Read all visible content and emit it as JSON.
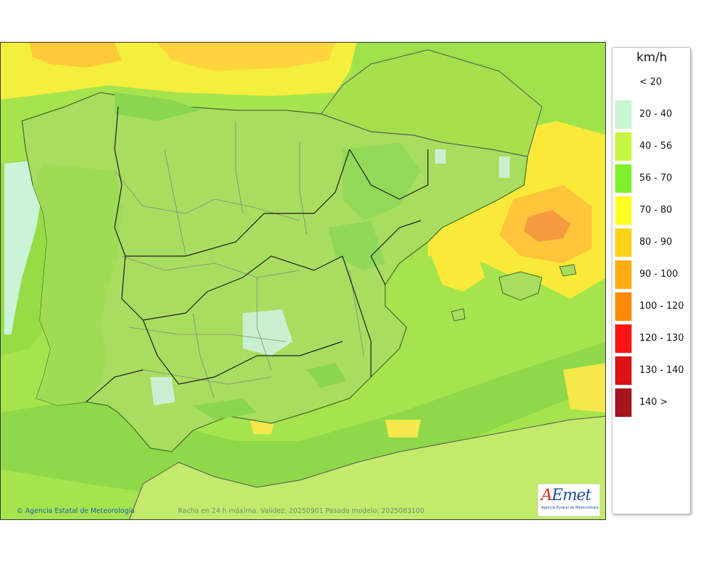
{
  "legend": {
    "title": "km/h",
    "items": [
      {
        "label": "< 20",
        "color": "#ffffff"
      },
      {
        "label": "20 - 40",
        "color": "#c8f7d2"
      },
      {
        "label": "40 - 56",
        "color": "#c6f542"
      },
      {
        "label": "56 - 70",
        "color": "#7ff02b"
      },
      {
        "label": "70 - 80",
        "color": "#ffff24"
      },
      {
        "label": "80 - 90",
        "color": "#ffd21a"
      },
      {
        "label": "90 - 100",
        "color": "#ffad12"
      },
      {
        "label": "100 - 120",
        "color": "#ff8a06"
      },
      {
        "label": "120 - 130",
        "color": "#ff1414"
      },
      {
        "label": "130 - 140",
        "color": "#d91414"
      },
      {
        "label": "140 >",
        "color": "#a7151f"
      }
    ]
  },
  "footer": {
    "copyright": "Agencia Estatal de Meteorología",
    "caption": "Racha en 24 h máxima. Validez: 20250901 Pasada modelo: 2025083100"
  },
  "logo": {
    "word": "AEmet",
    "subtitle": "Agencia Estatal de Meteorología"
  }
}
